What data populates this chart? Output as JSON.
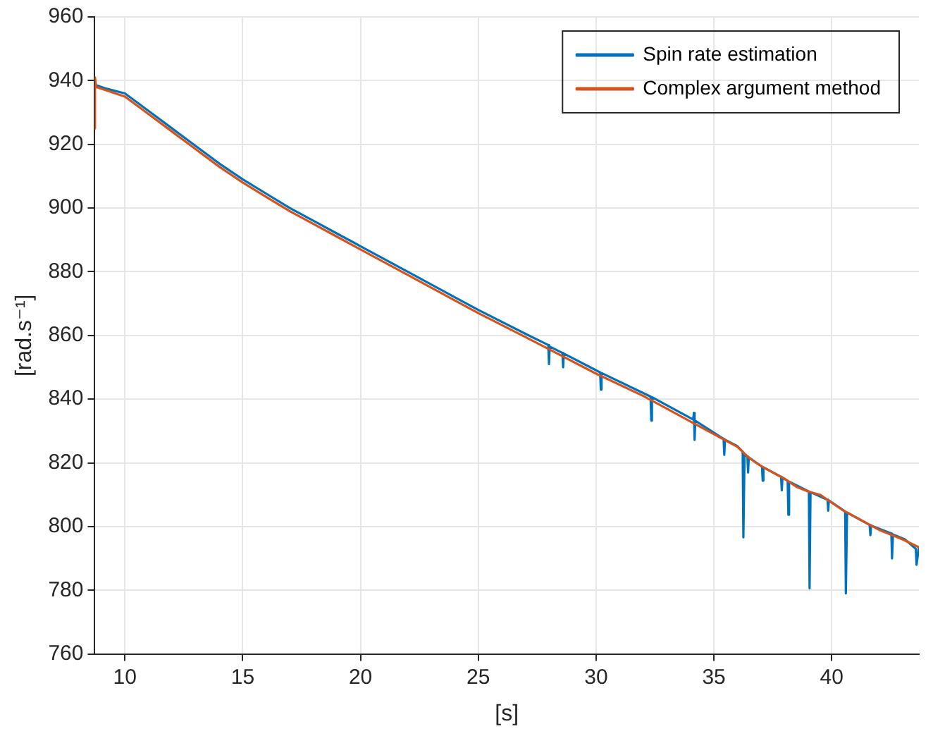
{
  "chart_data": {
    "type": "line",
    "xlabel": "[s]",
    "ylabel": "[rad.s⁻¹]",
    "xlim": [
      8.72,
      43.7
    ],
    "ylim": [
      760,
      960
    ],
    "xticks": [
      10,
      15,
      20,
      25,
      30,
      35,
      40
    ],
    "yticks": [
      760,
      780,
      800,
      820,
      840,
      860,
      880,
      900,
      920,
      940,
      960
    ],
    "grid": true,
    "legend": "top right",
    "marker": "none",
    "line_style": "solid",
    "series": [
      {
        "name": "Spin rate estimation",
        "color": "#0072bd",
        "x": [
          8.72,
          8.8,
          9.2,
          10,
          11,
          12,
          13,
          14,
          15,
          16,
          17,
          18,
          19,
          20,
          22,
          24,
          25,
          27,
          27.97,
          28.0,
          28.03,
          28.57,
          28.6,
          28.63,
          30.17,
          30.2,
          30.23,
          32.31,
          32.34,
          32.37,
          34.12,
          34.15,
          34.18,
          34.21,
          35.41,
          35.44,
          35.47,
          36.0,
          36.22,
          36.25,
          36.3,
          36.42,
          36.45,
          36.48,
          37.04,
          37.07,
          37.1,
          37.85,
          37.88,
          37.91,
          38.13,
          38.16,
          38.19,
          39.03,
          39.06,
          39.1,
          39.82,
          39.85,
          39.88,
          40.57,
          40.6,
          40.65,
          41.61,
          41.64,
          41.67,
          42.53,
          42.56,
          42.6,
          43.1,
          43.57,
          43.6,
          43.7
        ],
        "values": [
          938,
          938.5,
          937.5,
          936,
          930.5,
          925,
          919.5,
          914,
          909,
          904.5,
          900,
          896,
          892,
          888,
          880,
          872,
          868,
          860.5,
          857,
          851,
          856.5,
          854.5,
          850,
          854.3,
          848.4,
          843,
          848.2,
          840.8,
          833.3,
          840.6,
          833.6,
          835.7,
          827.2,
          833.2,
          827.5,
          822.5,
          827.3,
          825.2,
          823.5,
          796.6,
          822.5,
          822,
          817,
          821.7,
          818.8,
          814.4,
          818.6,
          815.6,
          811.4,
          815.4,
          814.3,
          803.7,
          814.1,
          811,
          780.6,
          810.8,
          808.4,
          805,
          808.2,
          804.7,
          779,
          804.4,
          800.5,
          797.3,
          800.3,
          797.8,
          790,
          797.5,
          796,
          793,
          788,
          793.5
        ]
      },
      {
        "name": "Complex argument method",
        "color": "#d95319",
        "x": [
          8.72,
          8.73,
          8.78,
          9.2,
          10,
          11,
          12,
          13,
          14,
          15,
          16,
          17,
          18,
          19,
          20,
          22,
          24,
          25,
          27,
          30,
          32,
          33,
          34,
          35,
          36,
          36.5,
          37,
          37.5,
          38,
          38.5,
          39,
          39.5,
          40,
          40.5,
          41,
          41.5,
          42,
          42.5,
          43,
          43.7
        ],
        "values": [
          925,
          941,
          938,
          937,
          935,
          929.5,
          924,
          918.5,
          913,
          908,
          903.5,
          899,
          895,
          891,
          887,
          879,
          871,
          867,
          859.5,
          848,
          841,
          837,
          833,
          829,
          825,
          821.5,
          819,
          817,
          815,
          812.5,
          811,
          810,
          807.5,
          805,
          803,
          801,
          799,
          797.5,
          796,
          793.5
        ]
      }
    ]
  }
}
